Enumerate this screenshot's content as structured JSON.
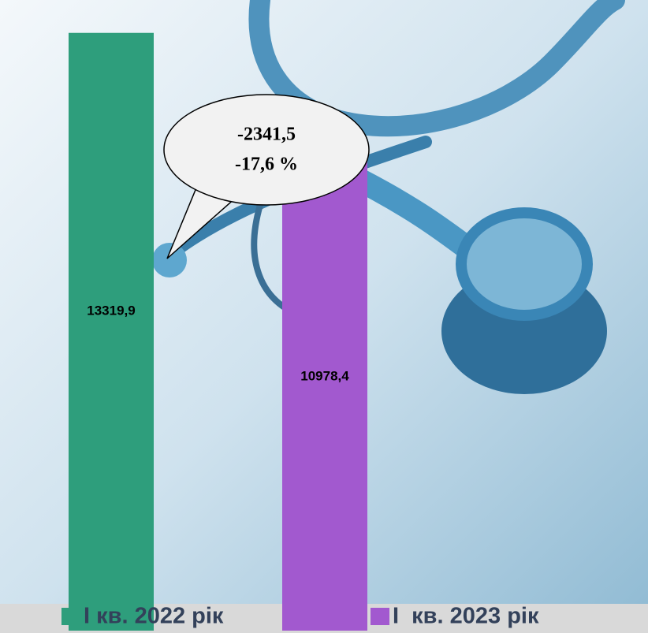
{
  "chart_data": {
    "type": "bar",
    "categories": [
      null
    ],
    "series": [
      {
        "name": "I кв. 2022 рік",
        "color": "#2e9e7c",
        "values": [
          13319.9
        ],
        "value_labels": [
          "13319,9"
        ]
      },
      {
        "name": "I  кв. 2023 рік",
        "color": "#a259cf",
        "values": [
          10978.4
        ],
        "value_labels": [
          "10978,4"
        ]
      }
    ],
    "ylim": [
      0,
      14000
    ],
    "annotation": [
      "-2341,5",
      "-17,6 %"
    ],
    "legend": "bottom"
  }
}
